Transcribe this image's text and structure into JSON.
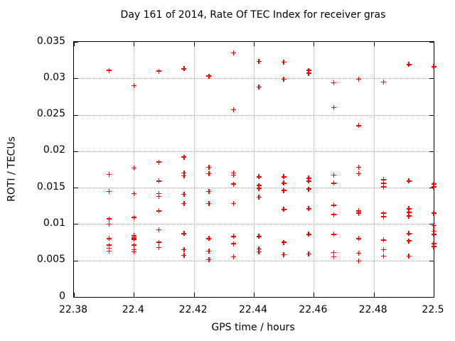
{
  "chart_data": {
    "type": "scatter",
    "title": "Day 161 of 2014, Rate Of TEC Index for receiver gras",
    "xlabel": "GPS time / hours",
    "ylabel": "ROTI / TECUs",
    "xlim": [
      22.38,
      22.5
    ],
    "ylim": [
      0,
      0.035
    ],
    "xticks": {
      "values": [
        22.38,
        22.4,
        22.42,
        22.44,
        22.46,
        22.48,
        22.5
      ],
      "labels": [
        "22.38",
        "22.4",
        "22.42",
        "22.44",
        "22.46",
        "22.48",
        "22.5"
      ]
    },
    "yticks": {
      "values": [
        0,
        0.005,
        0.01,
        0.015,
        0.02,
        0.025,
        0.03,
        0.035
      ],
      "labels": [
        "0",
        "0.005",
        "0.01",
        "0.015",
        "0.02",
        "0.025",
        "0.03",
        "0.035"
      ]
    },
    "grid": true,
    "legend": "none",
    "background_color": "#ffffff",
    "grid_color": "#a0a0a0",
    "axis_color": "#000000",
    "marker": {
      "shape": "plus",
      "color": "#ff0000",
      "size": 7
    },
    "series": [
      {
        "name": "ROTI",
        "points": [
          [
            22.3917,
            0.0311
          ],
          [
            22.3917,
            0.0168
          ],
          [
            22.3917,
            0.0145
          ],
          [
            22.3917,
            0.0107
          ],
          [
            22.3917,
            0.01
          ],
          [
            22.3917,
            0.008
          ],
          [
            22.3917,
            0.0071
          ],
          [
            22.3917,
            0.0067
          ],
          [
            22.3917,
            0.0063
          ],
          [
            22.4,
            0.029
          ],
          [
            22.4,
            0.0177
          ],
          [
            22.4,
            0.0142
          ],
          [
            22.4,
            0.0109
          ],
          [
            22.4,
            0.0084
          ],
          [
            22.4,
            0.0081
          ],
          [
            22.4,
            0.0079
          ],
          [
            22.4,
            0.0071
          ],
          [
            22.4,
            0.0065
          ],
          [
            22.4,
            0.0062
          ],
          [
            22.4083,
            0.031
          ],
          [
            22.4083,
            0.0185
          ],
          [
            22.4083,
            0.0159
          ],
          [
            22.4083,
            0.0142
          ],
          [
            22.4083,
            0.0138
          ],
          [
            22.4083,
            0.0118
          ],
          [
            22.4083,
            0.0092
          ],
          [
            22.4083,
            0.0075
          ],
          [
            22.4083,
            0.0068
          ],
          [
            22.4167,
            0.0313
          ],
          [
            22.4167,
            0.0192
          ],
          [
            22.4167,
            0.017
          ],
          [
            22.4167,
            0.0166
          ],
          [
            22.4167,
            0.0141
          ],
          [
            22.4167,
            0.0128
          ],
          [
            22.4167,
            0.0087
          ],
          [
            22.4167,
            0.0065
          ],
          [
            22.4167,
            0.0057
          ],
          [
            22.425,
            0.0303
          ],
          [
            22.425,
            0.0178
          ],
          [
            22.425,
            0.0169
          ],
          [
            22.425,
            0.0145
          ],
          [
            22.425,
            0.0128
          ],
          [
            22.425,
            0.008
          ],
          [
            22.425,
            0.0063
          ],
          [
            22.425,
            0.0051
          ],
          [
            22.4333,
            0.0335
          ],
          [
            22.4333,
            0.0257
          ],
          [
            22.4333,
            0.017
          ],
          [
            22.4333,
            0.0167
          ],
          [
            22.4333,
            0.0155
          ],
          [
            22.4333,
            0.0128
          ],
          [
            22.4333,
            0.0083
          ],
          [
            22.4333,
            0.0073
          ],
          [
            22.4333,
            0.0055
          ],
          [
            22.4417,
            0.0323
          ],
          [
            22.4417,
            0.0288
          ],
          [
            22.4417,
            0.0165
          ],
          [
            22.4417,
            0.0153
          ],
          [
            22.4417,
            0.0149
          ],
          [
            22.4417,
            0.0137
          ],
          [
            22.4417,
            0.0083
          ],
          [
            22.4417,
            0.0066
          ],
          [
            22.4417,
            0.0062
          ],
          [
            22.45,
            0.0322
          ],
          [
            22.45,
            0.0299
          ],
          [
            22.45,
            0.0165
          ],
          [
            22.45,
            0.0156
          ],
          [
            22.45,
            0.0146
          ],
          [
            22.45,
            0.012
          ],
          [
            22.45,
            0.0075
          ],
          [
            22.45,
            0.0058
          ],
          [
            22.4583,
            0.0311
          ],
          [
            22.4583,
            0.0307
          ],
          [
            22.4583,
            0.0163
          ],
          [
            22.4583,
            0.0159
          ],
          [
            22.4583,
            0.0148
          ],
          [
            22.4583,
            0.0121
          ],
          [
            22.4583,
            0.0086
          ],
          [
            22.4583,
            0.0059
          ],
          [
            22.4667,
            0.0294
          ],
          [
            22.4667,
            0.026
          ],
          [
            22.4667,
            0.0167
          ],
          [
            22.4667,
            0.0156
          ],
          [
            22.4667,
            0.0126
          ],
          [
            22.4667,
            0.0113
          ],
          [
            22.4667,
            0.0086
          ],
          [
            22.4667,
            0.0061
          ],
          [
            22.4667,
            0.0055
          ],
          [
            22.475,
            0.0299
          ],
          [
            22.475,
            0.0235
          ],
          [
            22.475,
            0.0178
          ],
          [
            22.475,
            0.0169
          ],
          [
            22.475,
            0.0118
          ],
          [
            22.475,
            0.0115
          ],
          [
            22.475,
            0.008
          ],
          [
            22.475,
            0.006
          ],
          [
            22.475,
            0.0049
          ],
          [
            22.4833,
            0.0295
          ],
          [
            22.4833,
            0.0161
          ],
          [
            22.4833,
            0.0156
          ],
          [
            22.4833,
            0.0151
          ],
          [
            22.4833,
            0.0115
          ],
          [
            22.4833,
            0.011
          ],
          [
            22.4833,
            0.0078
          ],
          [
            22.4833,
            0.0065
          ],
          [
            22.4833,
            0.0056
          ],
          [
            22.4917,
            0.0319
          ],
          [
            22.4917,
            0.0159
          ],
          [
            22.4917,
            0.0121
          ],
          [
            22.4917,
            0.0116
          ],
          [
            22.4917,
            0.0111
          ],
          [
            22.4917,
            0.0087
          ],
          [
            22.4917,
            0.0077
          ],
          [
            22.4917,
            0.0056
          ],
          [
            22.5,
            0.0316
          ],
          [
            22.5,
            0.0155
          ],
          [
            22.5,
            0.0151
          ],
          [
            22.5,
            0.0115
          ],
          [
            22.5,
            0.0098
          ],
          [
            22.5,
            0.009
          ],
          [
            22.5,
            0.0086
          ],
          [
            22.5,
            0.0073
          ],
          [
            22.5,
            0.0069
          ]
        ]
      }
    ]
  }
}
